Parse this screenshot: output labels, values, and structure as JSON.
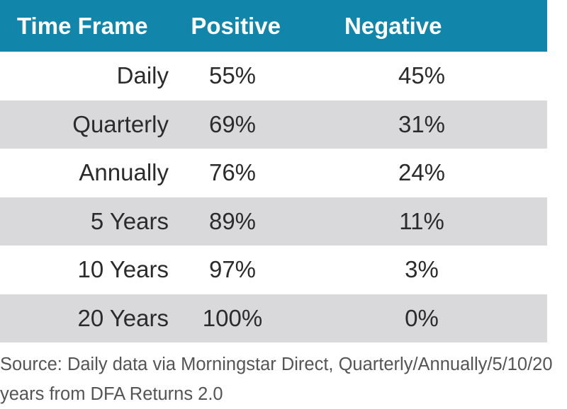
{
  "chart_data": {
    "type": "table",
    "columns": [
      "Time Frame",
      "Positive",
      "Negative"
    ],
    "rows": [
      {
        "time_frame": "Daily",
        "positive": "55%",
        "negative": "45%"
      },
      {
        "time_frame": "Quarterly",
        "positive": "69%",
        "negative": "31%"
      },
      {
        "time_frame": "Annually",
        "positive": "76%",
        "negative": "24%"
      },
      {
        "time_frame": "5 Years",
        "positive": "89%",
        "negative": "11%"
      },
      {
        "time_frame": "10 Years",
        "positive": "97%",
        "negative": "3%"
      },
      {
        "time_frame": "20 Years",
        "positive": "100%",
        "negative": "0%"
      }
    ],
    "source_line1": "Source: Daily data via Morningstar Direct, Quarterly/Annually/5/10/20",
    "source_line2": "years from DFA Returns 2.0"
  },
  "colors": {
    "header_bg": "#1286aa",
    "header_text": "#ffffff",
    "shaded_row": "#d9d9db",
    "body_text": "#2b2b2b"
  }
}
